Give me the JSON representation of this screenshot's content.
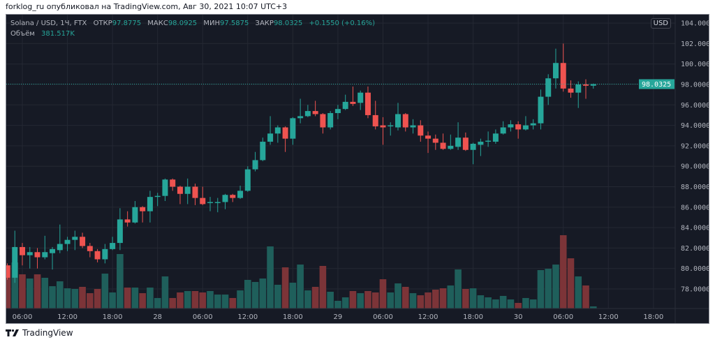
{
  "header": {
    "published": "forklog_ru опубликовал на TradingView.com, Авг 30, 2021 10:07 UTC+3"
  },
  "legend": {
    "symbol": "Solana / USD, 1Ч, FTX",
    "open_label": "ОТКР",
    "open": "97.8775",
    "high_label": "МАКС",
    "high": "98.0925",
    "low_label": "МИН",
    "low": "97.5875",
    "close_label": "ЗАКР",
    "close": "98.0325",
    "change": "+0.1550 (+0.16%)",
    "volume_label": "Объём",
    "volume": "381.517K"
  },
  "currency_badge": "USD",
  "footer": {
    "brand": "TradingView"
  },
  "colors": {
    "background": "#161a25",
    "up": "#26a69a",
    "down": "#ef5350",
    "volume_up": "#1f5f5b",
    "volume_down": "#7c3438",
    "grid": "#242833",
    "axis_text": "#b2b5be"
  },
  "chart_data": {
    "type": "candlestick",
    "title": "Solana / USD, 1Ч, FTX",
    "ylim": [
      76,
      104.5
    ],
    "grid": true,
    "last_price": {
      "value": 98.0325,
      "label": "98.0325"
    },
    "y_ticks": [
      {
        "v": 104,
        "label": "104.0000"
      },
      {
        "v": 102,
        "label": "102.0000"
      },
      {
        "v": 100,
        "label": "100.0000"
      },
      {
        "v": 98,
        "label": "98.0000"
      },
      {
        "v": 96,
        "label": "96.0000"
      },
      {
        "v": 94,
        "label": "94.0000"
      },
      {
        "v": 92,
        "label": "92.0000"
      },
      {
        "v": 90,
        "label": "90.0000"
      },
      {
        "v": 88,
        "label": "88.0000"
      },
      {
        "v": 86,
        "label": "86.0000"
      },
      {
        "v": 84,
        "label": "84.0000"
      },
      {
        "v": 82,
        "label": "82.0000"
      },
      {
        "v": 80,
        "label": "80.0000"
      },
      {
        "v": 78,
        "label": "78.0000"
      }
    ],
    "x_ticks": [
      {
        "t": "08-27 06:00",
        "label": "06:00"
      },
      {
        "t": "08-27 12:00",
        "label": "12:00"
      },
      {
        "t": "08-27 18:00",
        "label": "18:00"
      },
      {
        "t": "08-28 00:00",
        "label": "28"
      },
      {
        "t": "08-28 06:00",
        "label": "06:00"
      },
      {
        "t": "08-28 12:00",
        "label": "12:00"
      },
      {
        "t": "08-28 18:00",
        "label": "18:00"
      },
      {
        "t": "08-29 00:00",
        "label": "29"
      },
      {
        "t": "08-29 06:00",
        "label": "06:00"
      },
      {
        "t": "08-29 12:00",
        "label": "12:00"
      },
      {
        "t": "08-29 18:00",
        "label": "18:00"
      },
      {
        "t": "08-30 00:00",
        "label": "30"
      },
      {
        "t": "08-30 06:00",
        "label": "06:00"
      },
      {
        "t": "08-30 12:00",
        "label": "12:00"
      },
      {
        "t": "08-30 18:00",
        "label": "18:00"
      }
    ],
    "columns": [
      "time",
      "open",
      "high",
      "low",
      "close",
      "volume_k"
    ],
    "candles": [
      [
        "08-27 04:00",
        80.3,
        80.5,
        78.9,
        79.1,
        7870
      ],
      [
        "08-27 05:00",
        79.1,
        83.7,
        78.6,
        82.1,
        8380
      ],
      [
        "08-27 06:00",
        82.1,
        82.5,
        80.3,
        81.3,
        6220
      ],
      [
        "08-27 07:00",
        81.3,
        82.1,
        80.0,
        81.6,
        5460
      ],
      [
        "08-27 08:00",
        81.6,
        82.0,
        80.0,
        81.1,
        6220
      ],
      [
        "08-27 09:00",
        81.1,
        83.2,
        80.9,
        81.6,
        5590
      ],
      [
        "08-27 10:00",
        81.5,
        82.1,
        79.9,
        81.9,
        4060
      ],
      [
        "08-27 11:00",
        81.8,
        84.3,
        81.5,
        82.4,
        4950
      ],
      [
        "08-27 12:00",
        82.4,
        83.1,
        81.7,
        82.8,
        3680
      ],
      [
        "08-27 13:00",
        82.8,
        83.7,
        81.8,
        83.1,
        3560
      ],
      [
        "08-27 14:00",
        83.1,
        83.5,
        82.0,
        82.2,
        3940
      ],
      [
        "08-27 15:00",
        82.2,
        82.5,
        81.1,
        81.7,
        2790
      ],
      [
        "08-27 16:00",
        81.7,
        81.9,
        80.6,
        80.9,
        3560
      ],
      [
        "08-27 17:00",
        80.9,
        82.4,
        80.5,
        81.9,
        6350
      ],
      [
        "08-27 18:00",
        81.9,
        83.1,
        81.8,
        82.5,
        2920
      ],
      [
        "08-27 19:00",
        82.5,
        85.9,
        81.8,
        84.8,
        9910
      ],
      [
        "08-27 20:00",
        84.8,
        85.6,
        84.1,
        84.5,
        3810
      ],
      [
        "08-27 21:00",
        84.5,
        86.6,
        84.4,
        86.0,
        3810
      ],
      [
        "08-27 22:00",
        86.0,
        86.1,
        84.5,
        85.6,
        2790
      ],
      [
        "08-27 23:00",
        85.6,
        87.6,
        84.5,
        87.0,
        3810
      ],
      [
        "08-28 00:00",
        87.0,
        87.4,
        86.1,
        87.1,
        1910
      ],
      [
        "08-28 01:00",
        87.1,
        88.8,
        86.6,
        88.7,
        5840
      ],
      [
        "08-28 02:00",
        88.7,
        88.8,
        87.6,
        88.0,
        1910
      ],
      [
        "08-28 03:00",
        88.0,
        88.1,
        86.3,
        87.3,
        2920
      ],
      [
        "08-28 04:00",
        87.3,
        88.8,
        86.3,
        88.0,
        3180
      ],
      [
        "08-28 05:00",
        88.0,
        88.3,
        86.2,
        86.9,
        3180
      ],
      [
        "08-28 06:00",
        86.9,
        88.0,
        86.2,
        86.3,
        2920
      ],
      [
        "08-28 07:00",
        86.4,
        87.0,
        85.6,
        86.5,
        3180
      ],
      [
        "08-28 08:00",
        86.4,
        86.9,
        85.5,
        86.5,
        2540
      ],
      [
        "08-28 09:00",
        86.5,
        87.3,
        85.8,
        87.2,
        2540
      ],
      [
        "08-28 10:00",
        87.2,
        87.3,
        86.5,
        86.9,
        1910
      ],
      [
        "08-28 11:00",
        86.9,
        88.1,
        86.8,
        87.6,
        3300
      ],
      [
        "08-28 12:00",
        87.6,
        90.0,
        87.5,
        89.7,
        5210
      ],
      [
        "08-28 13:00",
        89.7,
        91.4,
        89.5,
        90.6,
        4830
      ],
      [
        "08-28 14:00",
        90.6,
        92.8,
        90.5,
        92.4,
        5460
      ],
      [
        "08-28 15:00",
        92.4,
        94.9,
        92.1,
        93.2,
        11300
      ],
      [
        "08-28 16:00",
        93.2,
        94.0,
        92.3,
        93.8,
        4320
      ],
      [
        "08-28 17:00",
        93.8,
        93.9,
        91.4,
        92.7,
        7490
      ],
      [
        "08-28 18:00",
        92.7,
        94.8,
        92.1,
        94.7,
        4700
      ],
      [
        "08-28 19:00",
        94.7,
        96.6,
        94.2,
        94.9,
        8000
      ],
      [
        "08-28 20:00",
        94.9,
        96.0,
        94.8,
        95.4,
        3300
      ],
      [
        "08-28 21:00",
        95.4,
        96.4,
        94.9,
        95.1,
        3940
      ],
      [
        "08-28 22:00",
        95.1,
        95.2,
        93.2,
        93.8,
        7750
      ],
      [
        "08-28 23:00",
        93.8,
        95.4,
        93.6,
        95.2,
        3050
      ],
      [
        "08-29 00:00",
        95.2,
        96.0,
        94.6,
        95.6,
        1400
      ],
      [
        "08-29 01:00",
        95.6,
        97.0,
        95.5,
        96.3,
        2030
      ],
      [
        "08-29 02:00",
        96.3,
        97.8,
        95.9,
        96.1,
        3180
      ],
      [
        "08-29 03:00",
        96.2,
        97.4,
        95.5,
        97.2,
        2790
      ],
      [
        "08-29 04:00",
        97.2,
        97.8,
        94.7,
        95.0,
        3180
      ],
      [
        "08-29 05:00",
        95.0,
        96.4,
        93.6,
        93.9,
        2920
      ],
      [
        "08-29 06:00",
        94.0,
        94.8,
        92.1,
        93.8,
        5330
      ],
      [
        "08-29 07:00",
        93.9,
        94.3,
        93.0,
        94.0,
        2920
      ],
      [
        "08-29 08:00",
        93.8,
        96.2,
        93.5,
        95.1,
        4570
      ],
      [
        "08-29 09:00",
        95.1,
        95.2,
        93.4,
        93.8,
        3940
      ],
      [
        "08-29 10:00",
        93.8,
        94.6,
        93.2,
        94.0,
        2790
      ],
      [
        "08-29 11:00",
        94.0,
        94.5,
        92.4,
        93.0,
        2410
      ],
      [
        "08-29 12:00",
        93.0,
        93.4,
        91.3,
        92.7,
        2920
      ],
      [
        "08-29 13:00",
        92.7,
        93.1,
        91.6,
        92.3,
        3430
      ],
      [
        "08-29 14:00",
        92.3,
        93.2,
        91.6,
        91.7,
        3680
      ],
      [
        "08-29 15:00",
        91.7,
        93.1,
        91.6,
        92.0,
        4190
      ],
      [
        "08-29 16:00",
        91.9,
        94.3,
        91.6,
        92.8,
        7110
      ],
      [
        "08-29 17:00",
        92.8,
        93.3,
        91.5,
        91.6,
        3560
      ],
      [
        "08-29 18:00",
        91.6,
        92.3,
        90.2,
        92.2,
        3680
      ],
      [
        "08-29 19:00",
        92.1,
        92.7,
        91.0,
        92.4,
        2410
      ],
      [
        "08-29 20:00",
        92.4,
        93.4,
        91.9,
        92.5,
        2030
      ],
      [
        "08-29 21:00",
        92.4,
        93.6,
        92.2,
        93.2,
        1650
      ],
      [
        "08-29 22:00",
        93.2,
        94.4,
        93.1,
        93.8,
        2290
      ],
      [
        "08-29 23:00",
        93.8,
        94.5,
        93.4,
        94.1,
        1650
      ],
      [
        "08-30 00:00",
        94.1,
        94.4,
        92.7,
        93.6,
        1020
      ],
      [
        "08-30 01:00",
        93.6,
        94.9,
        93.5,
        94.0,
        1910
      ],
      [
        "08-30 02:00",
        94.0,
        94.6,
        93.6,
        94.2,
        1650
      ],
      [
        "08-30 03:00",
        94.2,
        97.5,
        93.6,
        96.8,
        6990
      ],
      [
        "08-30 04:00",
        96.8,
        99.0,
        96.0,
        98.6,
        7240
      ],
      [
        "08-30 05:00",
        98.6,
        101.5,
        97.6,
        100.1,
        8000
      ],
      [
        "08-30 06:00",
        100.1,
        102.0,
        97.3,
        97.6,
        13340
      ],
      [
        "08-30 07:00",
        97.6,
        98.4,
        96.7,
        97.2,
        9140
      ],
      [
        "08-30 08:00",
        97.2,
        98.3,
        95.7,
        98.0,
        5840
      ],
      [
        "08-30 09:00",
        98.0,
        98.5,
        96.6,
        97.8775,
        4190
      ],
      [
        "08-30 10:00",
        97.8775,
        98.0925,
        97.5875,
        98.0325,
        381.517
      ]
    ]
  }
}
